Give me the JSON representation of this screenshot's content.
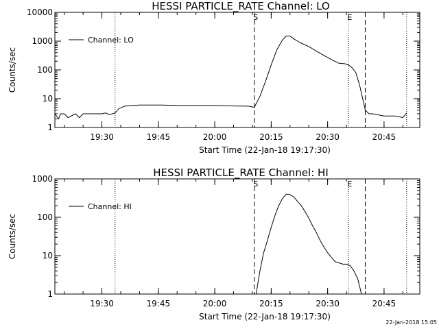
{
  "footer_stamp": "22-Jan-2018 15:05",
  "chart_data": [
    {
      "type": "line",
      "title": "HESSI PARTICLE_RATE Channel: LO",
      "xlabel": "Start Time (22-Jan-18 19:17:30)",
      "ylabel": "Counts/sec",
      "yscale": "log",
      "ylim": [
        1,
        10000
      ],
      "xlim": [
        "19:17:30",
        "20:54:30"
      ],
      "x_tick_labels": [
        "19:30",
        "19:45",
        "20:00",
        "20:15",
        "20:30",
        "20:45"
      ],
      "y_tick_labels": [
        "1",
        "10",
        "100",
        "1000",
        "10000"
      ],
      "legend": {
        "position": "top-left",
        "entries": [
          "Channel: LO"
        ]
      },
      "markers": [
        {
          "label": "",
          "style": "dotted",
          "time": "19:33:30"
        },
        {
          "label": "S",
          "style": "dashed",
          "time": "20:10:30"
        },
        {
          "label": "E",
          "style": "dotted",
          "time": "20:35:30"
        },
        {
          "label": "",
          "style": "dashed",
          "time": "20:40:00"
        },
        {
          "label": "",
          "style": "dotted",
          "time": "20:51:00"
        }
      ],
      "series": [
        {
          "name": "Channel: LO",
          "x": [
            "19:17:30",
            "19:18:30",
            "19:19:00",
            "19:20:00",
            "19:21:00",
            "19:23:00",
            "19:24:00",
            "19:25:00",
            "19:28:00",
            "19:30:00",
            "19:31:00",
            "19:32:00",
            "19:33:30",
            "19:34:30",
            "19:36:00",
            "19:38:00",
            "19:40:00",
            "19:43:00",
            "19:46:00",
            "19:50:00",
            "19:55:00",
            "20:00:00",
            "20:05:00",
            "20:09:00",
            "20:10:30",
            "20:12:00",
            "20:13:30",
            "20:15:00",
            "20:16:30",
            "20:18:00",
            "20:19:00",
            "20:20:00",
            "20:21:00",
            "20:22:00",
            "20:23:00",
            "20:25:00",
            "20:27:00",
            "20:29:00",
            "20:31:00",
            "20:33:00",
            "20:34:30",
            "20:35:30",
            "20:36:30",
            "20:37:30",
            "20:38:30",
            "20:39:30",
            "20:40:00",
            "20:41:00",
            "20:42:00",
            "20:45:00",
            "20:48:00",
            "20:50:00",
            "20:51:00"
          ],
          "y": [
            3,
            2,
            3,
            3,
            2.2,
            3,
            2.2,
            3,
            3,
            3,
            3.2,
            2.8,
            3.2,
            4.5,
            5.5,
            5.8,
            6,
            6,
            6,
            5.8,
            5.8,
            5.8,
            5.6,
            5.5,
            5,
            12,
            40,
            150,
            500,
            1100,
            1500,
            1500,
            1200,
            1000,
            850,
            650,
            450,
            320,
            230,
            170,
            165,
            150,
            120,
            80,
            30,
            8,
            4,
            3,
            3,
            2.5,
            2.5,
            2.2,
            3.2
          ]
        }
      ]
    },
    {
      "type": "line",
      "title": "HESSI PARTICLE_RATE Channel: HI",
      "xlabel": "Start Time (22-Jan-18 19:17:30)",
      "ylabel": "Counts/sec",
      "yscale": "log",
      "ylim": [
        1,
        1000
      ],
      "xlim": [
        "19:17:30",
        "20:54:30"
      ],
      "x_tick_labels": [
        "19:30",
        "19:45",
        "20:00",
        "20:15",
        "20:30",
        "20:45"
      ],
      "y_tick_labels": [
        "1",
        "10",
        "100",
        "1000"
      ],
      "legend": {
        "position": "top-left",
        "entries": [
          "Channel: HI"
        ]
      },
      "markers": [
        {
          "label": "",
          "style": "dotted",
          "time": "19:33:30"
        },
        {
          "label": "S",
          "style": "dashed",
          "time": "20:10:30"
        },
        {
          "label": "E",
          "style": "dotted",
          "time": "20:35:30"
        },
        {
          "label": "",
          "style": "dashed",
          "time": "20:40:00"
        },
        {
          "label": "",
          "style": "dotted",
          "time": "20:51:00"
        }
      ],
      "series": [
        {
          "name": "Channel: HI",
          "x": [
            "20:11:00",
            "20:12:00",
            "20:13:00",
            "20:14:00",
            "20:15:00",
            "20:16:00",
            "20:17:00",
            "20:18:00",
            "20:19:00",
            "20:20:00",
            "20:21:00",
            "20:22:00",
            "20:23:00",
            "20:24:00",
            "20:25:00",
            "20:26:00",
            "20:27:00",
            "20:28:00",
            "20:29:00",
            "20:30:00",
            "20:31:00",
            "20:32:00",
            "20:33:00",
            "20:34:00",
            "20:35:00",
            "20:36:00",
            "20:37:00",
            "20:38:00",
            "20:39:00"
          ],
          "y": [
            1,
            4,
            12,
            25,
            55,
            110,
            200,
            310,
            400,
            390,
            340,
            260,
            200,
            140,
            95,
            60,
            40,
            25,
            17,
            12,
            9,
            7,
            6.5,
            6,
            6,
            5.5,
            4,
            2.5,
            1
          ]
        }
      ]
    }
  ]
}
